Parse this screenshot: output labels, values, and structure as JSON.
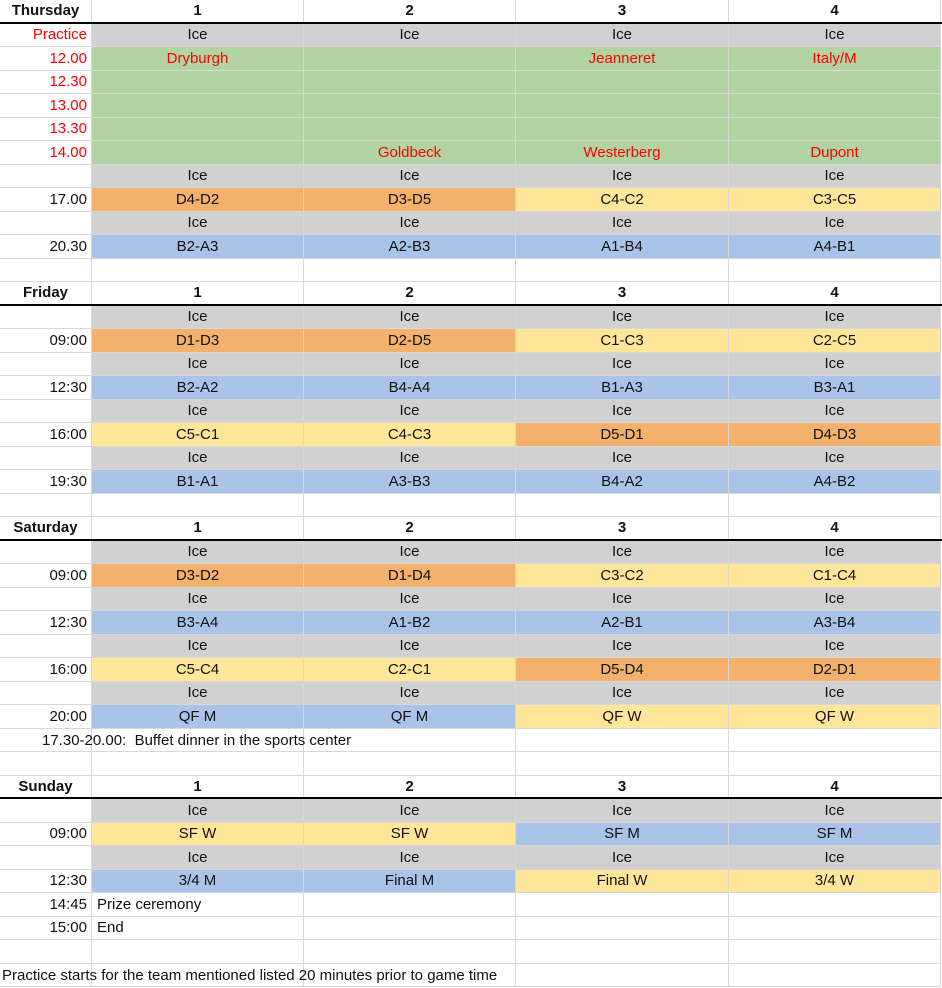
{
  "columns": [
    "1",
    "2",
    "3",
    "4"
  ],
  "colors": {
    "ice": "#D1D1D1",
    "green": "#B2D3A2",
    "orange": "#F3B16C",
    "yellow": "#FFE699",
    "blue": "#A9C4E8",
    "red": "#FF0000",
    "grid": "#D8D8D8",
    "header_border": "#000000"
  },
  "sections": [
    {
      "day": "Thursday",
      "rows": [
        {
          "time": "Practice",
          "red": true,
          "cells": [
            [
              "Ice",
              "ice"
            ],
            [
              "Ice",
              "ice"
            ],
            [
              "Ice",
              "ice"
            ],
            [
              "Ice",
              "ice"
            ]
          ]
        },
        {
          "time": "12.00",
          "red": true,
          "cells": [
            [
              "Dryburgh",
              "green",
              "red"
            ],
            [
              "",
              "green"
            ],
            [
              "Jeanneret",
              "green",
              "red"
            ],
            [
              "Italy/M",
              "green",
              "red"
            ]
          ]
        },
        {
          "time": "12.30",
          "red": true,
          "cells": [
            [
              "",
              "green"
            ],
            [
              "",
              "green"
            ],
            [
              "",
              "green"
            ],
            [
              "",
              "green"
            ]
          ]
        },
        {
          "time": "13.00",
          "red": true,
          "cells": [
            [
              "",
              "green"
            ],
            [
              "",
              "green"
            ],
            [
              "",
              "green"
            ],
            [
              "",
              "green"
            ]
          ]
        },
        {
          "time": "13.30",
          "red": true,
          "cells": [
            [
              "",
              "green"
            ],
            [
              "",
              "green"
            ],
            [
              "",
              "green"
            ],
            [
              "",
              "green"
            ]
          ]
        },
        {
          "time": "14.00",
          "red": true,
          "cells": [
            [
              "",
              "green"
            ],
            [
              "Goldbeck",
              "green",
              "red"
            ],
            [
              "Westerberg",
              "green",
              "red"
            ],
            [
              "Dupont",
              "green",
              "red"
            ]
          ]
        },
        {
          "time": "",
          "cells": [
            [
              "Ice",
              "ice"
            ],
            [
              "Ice",
              "ice"
            ],
            [
              "Ice",
              "ice"
            ],
            [
              "Ice",
              "ice"
            ]
          ]
        },
        {
          "time": "17.00",
          "cells": [
            [
              "D4-D2",
              "orange"
            ],
            [
              "D3-D5",
              "orange"
            ],
            [
              "C4-C2",
              "yellow"
            ],
            [
              "C3-C5",
              "yellow"
            ]
          ]
        },
        {
          "time": "",
          "cells": [
            [
              "Ice",
              "ice"
            ],
            [
              "Ice",
              "ice"
            ],
            [
              "Ice",
              "ice"
            ],
            [
              "Ice",
              "ice"
            ]
          ]
        },
        {
          "time": "20.30",
          "cells": [
            [
              "B2-A3",
              "blue"
            ],
            [
              "A2-B3",
              "blue"
            ],
            [
              "A1-B4",
              "blue"
            ],
            [
              "A4-B1",
              "blue"
            ]
          ]
        },
        {
          "blank": true
        }
      ]
    },
    {
      "day": "Friday",
      "rows": [
        {
          "time": "",
          "cells": [
            [
              "Ice",
              "ice"
            ],
            [
              "Ice",
              "ice"
            ],
            [
              "Ice",
              "ice"
            ],
            [
              "Ice",
              "ice"
            ]
          ]
        },
        {
          "time": "09:00",
          "cells": [
            [
              "D1-D3",
              "orange"
            ],
            [
              "D2-D5",
              "orange"
            ],
            [
              "C1-C3",
              "yellow"
            ],
            [
              "C2-C5",
              "yellow"
            ]
          ]
        },
        {
          "time": "",
          "cells": [
            [
              "Ice",
              "ice"
            ],
            [
              "Ice",
              "ice"
            ],
            [
              "Ice",
              "ice"
            ],
            [
              "Ice",
              "ice"
            ]
          ]
        },
        {
          "time": "12:30",
          "cells": [
            [
              "B2-A2",
              "blue"
            ],
            [
              "B4-A4",
              "blue"
            ],
            [
              "B1-A3",
              "blue"
            ],
            [
              "B3-A1",
              "blue"
            ]
          ]
        },
        {
          "time": "",
          "cells": [
            [
              "Ice",
              "ice"
            ],
            [
              "Ice",
              "ice"
            ],
            [
              "Ice",
              "ice"
            ],
            [
              "Ice",
              "ice"
            ]
          ]
        },
        {
          "time": "16:00",
          "cells": [
            [
              "C5-C1",
              "yellow"
            ],
            [
              "C4-C3",
              "yellow"
            ],
            [
              "D5-D1",
              "orange"
            ],
            [
              "D4-D3",
              "orange"
            ]
          ]
        },
        {
          "time": "",
          "cells": [
            [
              "Ice",
              "ice"
            ],
            [
              "Ice",
              "ice"
            ],
            [
              "Ice",
              "ice"
            ],
            [
              "Ice",
              "ice"
            ]
          ]
        },
        {
          "time": "19:30",
          "cells": [
            [
              "B1-A1",
              "blue"
            ],
            [
              "A3-B3",
              "blue"
            ],
            [
              "B4-A2",
              "blue"
            ],
            [
              "A4-B2",
              "blue"
            ]
          ]
        },
        {
          "blank": true
        }
      ]
    },
    {
      "day": "Saturday",
      "rows": [
        {
          "time": "",
          "cells": [
            [
              "Ice",
              "ice"
            ],
            [
              "Ice",
              "ice"
            ],
            [
              "Ice",
              "ice"
            ],
            [
              "Ice",
              "ice"
            ]
          ]
        },
        {
          "time": "09:00",
          "cells": [
            [
              "D3-D2",
              "orange"
            ],
            [
              "D1-D4",
              "orange"
            ],
            [
              "C3-C2",
              "yellow"
            ],
            [
              "C1-C4",
              "yellow"
            ]
          ]
        },
        {
          "time": "",
          "cells": [
            [
              "Ice",
              "ice"
            ],
            [
              "Ice",
              "ice"
            ],
            [
              "Ice",
              "ice"
            ],
            [
              "Ice",
              "ice"
            ]
          ]
        },
        {
          "time": "12:30",
          "cells": [
            [
              "B3-A4",
              "blue"
            ],
            [
              "A1-B2",
              "blue"
            ],
            [
              "A2-B1",
              "blue"
            ],
            [
              "A3-B4",
              "blue"
            ]
          ]
        },
        {
          "time": "",
          "cells": [
            [
              "Ice",
              "ice"
            ],
            [
              "Ice",
              "ice"
            ],
            [
              "Ice",
              "ice"
            ],
            [
              "Ice",
              "ice"
            ]
          ]
        },
        {
          "time": "16:00",
          "cells": [
            [
              "C5-C4",
              "yellow"
            ],
            [
              "C2-C1",
              "yellow"
            ],
            [
              "D5-D4",
              "orange"
            ],
            [
              "D2-D1",
              "orange"
            ]
          ]
        },
        {
          "time": "",
          "cells": [
            [
              "Ice",
              "ice"
            ],
            [
              "Ice",
              "ice"
            ],
            [
              "Ice",
              "ice"
            ],
            [
              "Ice",
              "ice"
            ]
          ]
        },
        {
          "time": "20:00",
          "cells": [
            [
              "QF M",
              "blue"
            ],
            [
              "QF M",
              "blue"
            ],
            [
              "QF W",
              "yellow"
            ],
            [
              "QF W",
              "yellow"
            ]
          ]
        },
        {
          "note": "17.30-20.00:  Buffet dinner in the sports center",
          "indent": 42,
          "name": "buffet-note"
        },
        {
          "blank": true
        }
      ]
    },
    {
      "day": "Sunday",
      "rows": [
        {
          "time": "",
          "cells": [
            [
              "Ice",
              "ice"
            ],
            [
              "Ice",
              "ice"
            ],
            [
              "Ice",
              "ice"
            ],
            [
              "Ice",
              "ice"
            ]
          ]
        },
        {
          "time": "09:00",
          "cells": [
            [
              "SF W",
              "yellow"
            ],
            [
              "SF W",
              "yellow"
            ],
            [
              "SF M",
              "blue"
            ],
            [
              "SF M",
              "blue"
            ]
          ]
        },
        {
          "time": "",
          "cells": [
            [
              "Ice",
              "ice"
            ],
            [
              "Ice",
              "ice"
            ],
            [
              "Ice",
              "ice"
            ],
            [
              "Ice",
              "ice"
            ]
          ]
        },
        {
          "time": "12:30",
          "cells": [
            [
              "3/4 M",
              "blue"
            ],
            [
              "Final M",
              "blue"
            ],
            [
              "Final W",
              "yellow"
            ],
            [
              "3/4 W",
              "yellow"
            ]
          ]
        },
        {
          "time": "14:45",
          "cells": [
            [
              "Prize ceremony",
              "white",
              "left"
            ],
            [
              "",
              "white"
            ],
            [
              "",
              "white"
            ],
            [
              "",
              "white"
            ]
          ]
        },
        {
          "time": "15:00",
          "cells": [
            [
              "End",
              "white",
              "left"
            ],
            [
              "",
              "white"
            ],
            [
              "",
              "white"
            ],
            [
              "",
              "white"
            ]
          ]
        },
        {
          "blank": true
        },
        {
          "note": "Practice starts for the team mentioned listed 20 minutes prior to game time",
          "indent": 2,
          "name": "footer-note"
        }
      ]
    }
  ]
}
